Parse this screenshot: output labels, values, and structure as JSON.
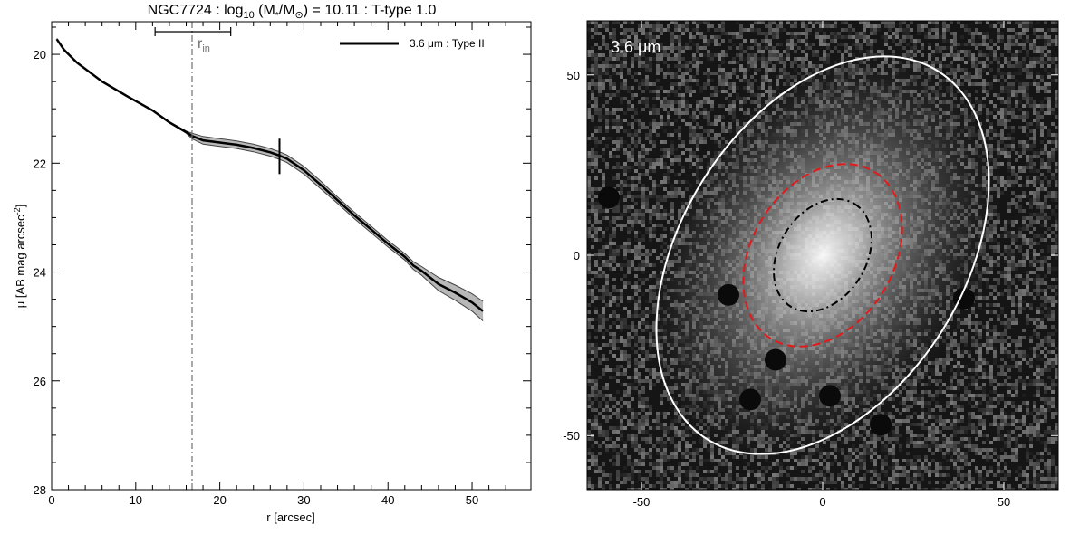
{
  "title": "NGC7724 : log10 (M*/M⊙) = 10.11 : T-type 1.0",
  "title_parts": {
    "lead": "NGC7724 : log",
    "sub10": "10",
    "mid": " (M",
    "star": "*",
    "slash": "/M",
    "sun": "⊙",
    "tail": ") = 10.11 : T-type 1.0"
  },
  "colors": {
    "profile": "#000000",
    "envelope": "#444444",
    "shade": "#b8b8b8",
    "rin_line": "#707070",
    "dashed_ellipse": "#e31a1c",
    "dashdot_ellipse": "#000000",
    "outer_ellipse": "#ffffff"
  },
  "chart_data": [
    {
      "type": "line",
      "xlabel": "r [arcsec]",
      "ylabel_parts": {
        "main": "μ [AB mag arcsec",
        "sup": "-2",
        "end": "]"
      },
      "xlim": [
        0,
        57
      ],
      "ylim": [
        28,
        19.4
      ],
      "y_inverted": true,
      "x_ticks": [
        0,
        10,
        20,
        30,
        40,
        50
      ],
      "y_ticks": [
        20,
        22,
        24,
        26,
        28
      ],
      "legend": {
        "label": "3.6 μm : Type II",
        "placement": "top-right"
      },
      "r_in": {
        "label_main": "r",
        "label_sub": "in",
        "value": 16.7,
        "err_low": 12.3,
        "err_high": 21.3
      },
      "break_marker": {
        "r": 27.1,
        "mu_low": 21.55,
        "mu_high": 22.2
      },
      "series": [
        {
          "name": "3.6 μm : Type II",
          "x": [
            0.6,
            1.5,
            3,
            6,
            9,
            12,
            14,
            16,
            16.7,
            18,
            20,
            22,
            24,
            26,
            27.1,
            28,
            30,
            32,
            34,
            36,
            38,
            40,
            42,
            43,
            44,
            45,
            46,
            48,
            50,
            51.3
          ],
          "y": [
            19.72,
            19.92,
            20.15,
            20.5,
            20.77,
            21.03,
            21.25,
            21.43,
            21.5,
            21.58,
            21.62,
            21.66,
            21.72,
            21.8,
            21.86,
            21.92,
            22.13,
            22.4,
            22.68,
            22.96,
            23.22,
            23.48,
            23.72,
            23.88,
            23.98,
            24.1,
            24.22,
            24.38,
            24.56,
            24.72
          ],
          "err": [
            0.01,
            0.01,
            0.01,
            0.01,
            0.01,
            0.01,
            0.01,
            0.02,
            0.05,
            0.07,
            0.07,
            0.07,
            0.07,
            0.07,
            0.07,
            0.07,
            0.07,
            0.07,
            0.06,
            0.06,
            0.06,
            0.06,
            0.06,
            0.07,
            0.08,
            0.1,
            0.12,
            0.14,
            0.16,
            0.18
          ]
        }
      ]
    },
    {
      "type": "image",
      "band_label": "3.6 μm",
      "xlim": [
        -65,
        65
      ],
      "ylim": [
        -65,
        65
      ],
      "x_ticks": [
        -50,
        0,
        50
      ],
      "y_ticks": [
        -50,
        0,
        50
      ],
      "ellipses": [
        {
          "name": "outer",
          "cx": 0,
          "cy": 0,
          "a": 60,
          "b": 39,
          "angle_deg": 58,
          "style": "solid"
        },
        {
          "name": "break",
          "cx": 0,
          "cy": 0,
          "a": 27.1,
          "b": 19.5,
          "angle_deg": 58,
          "style": "dashed"
        },
        {
          "name": "r_in",
          "cx": 0,
          "cy": 0,
          "a": 16.7,
          "b": 12.0,
          "angle_deg": 58,
          "style": "dashdot"
        }
      ],
      "masks": [
        {
          "x": -26,
          "y": -11
        },
        {
          "x": -13,
          "y": -29
        },
        {
          "x": -20,
          "y": -40
        },
        {
          "x": 2,
          "y": -39
        },
        {
          "x": 16,
          "y": -47
        },
        {
          "x": 39,
          "y": -12
        },
        {
          "x": -59,
          "y": 16
        }
      ]
    }
  ]
}
